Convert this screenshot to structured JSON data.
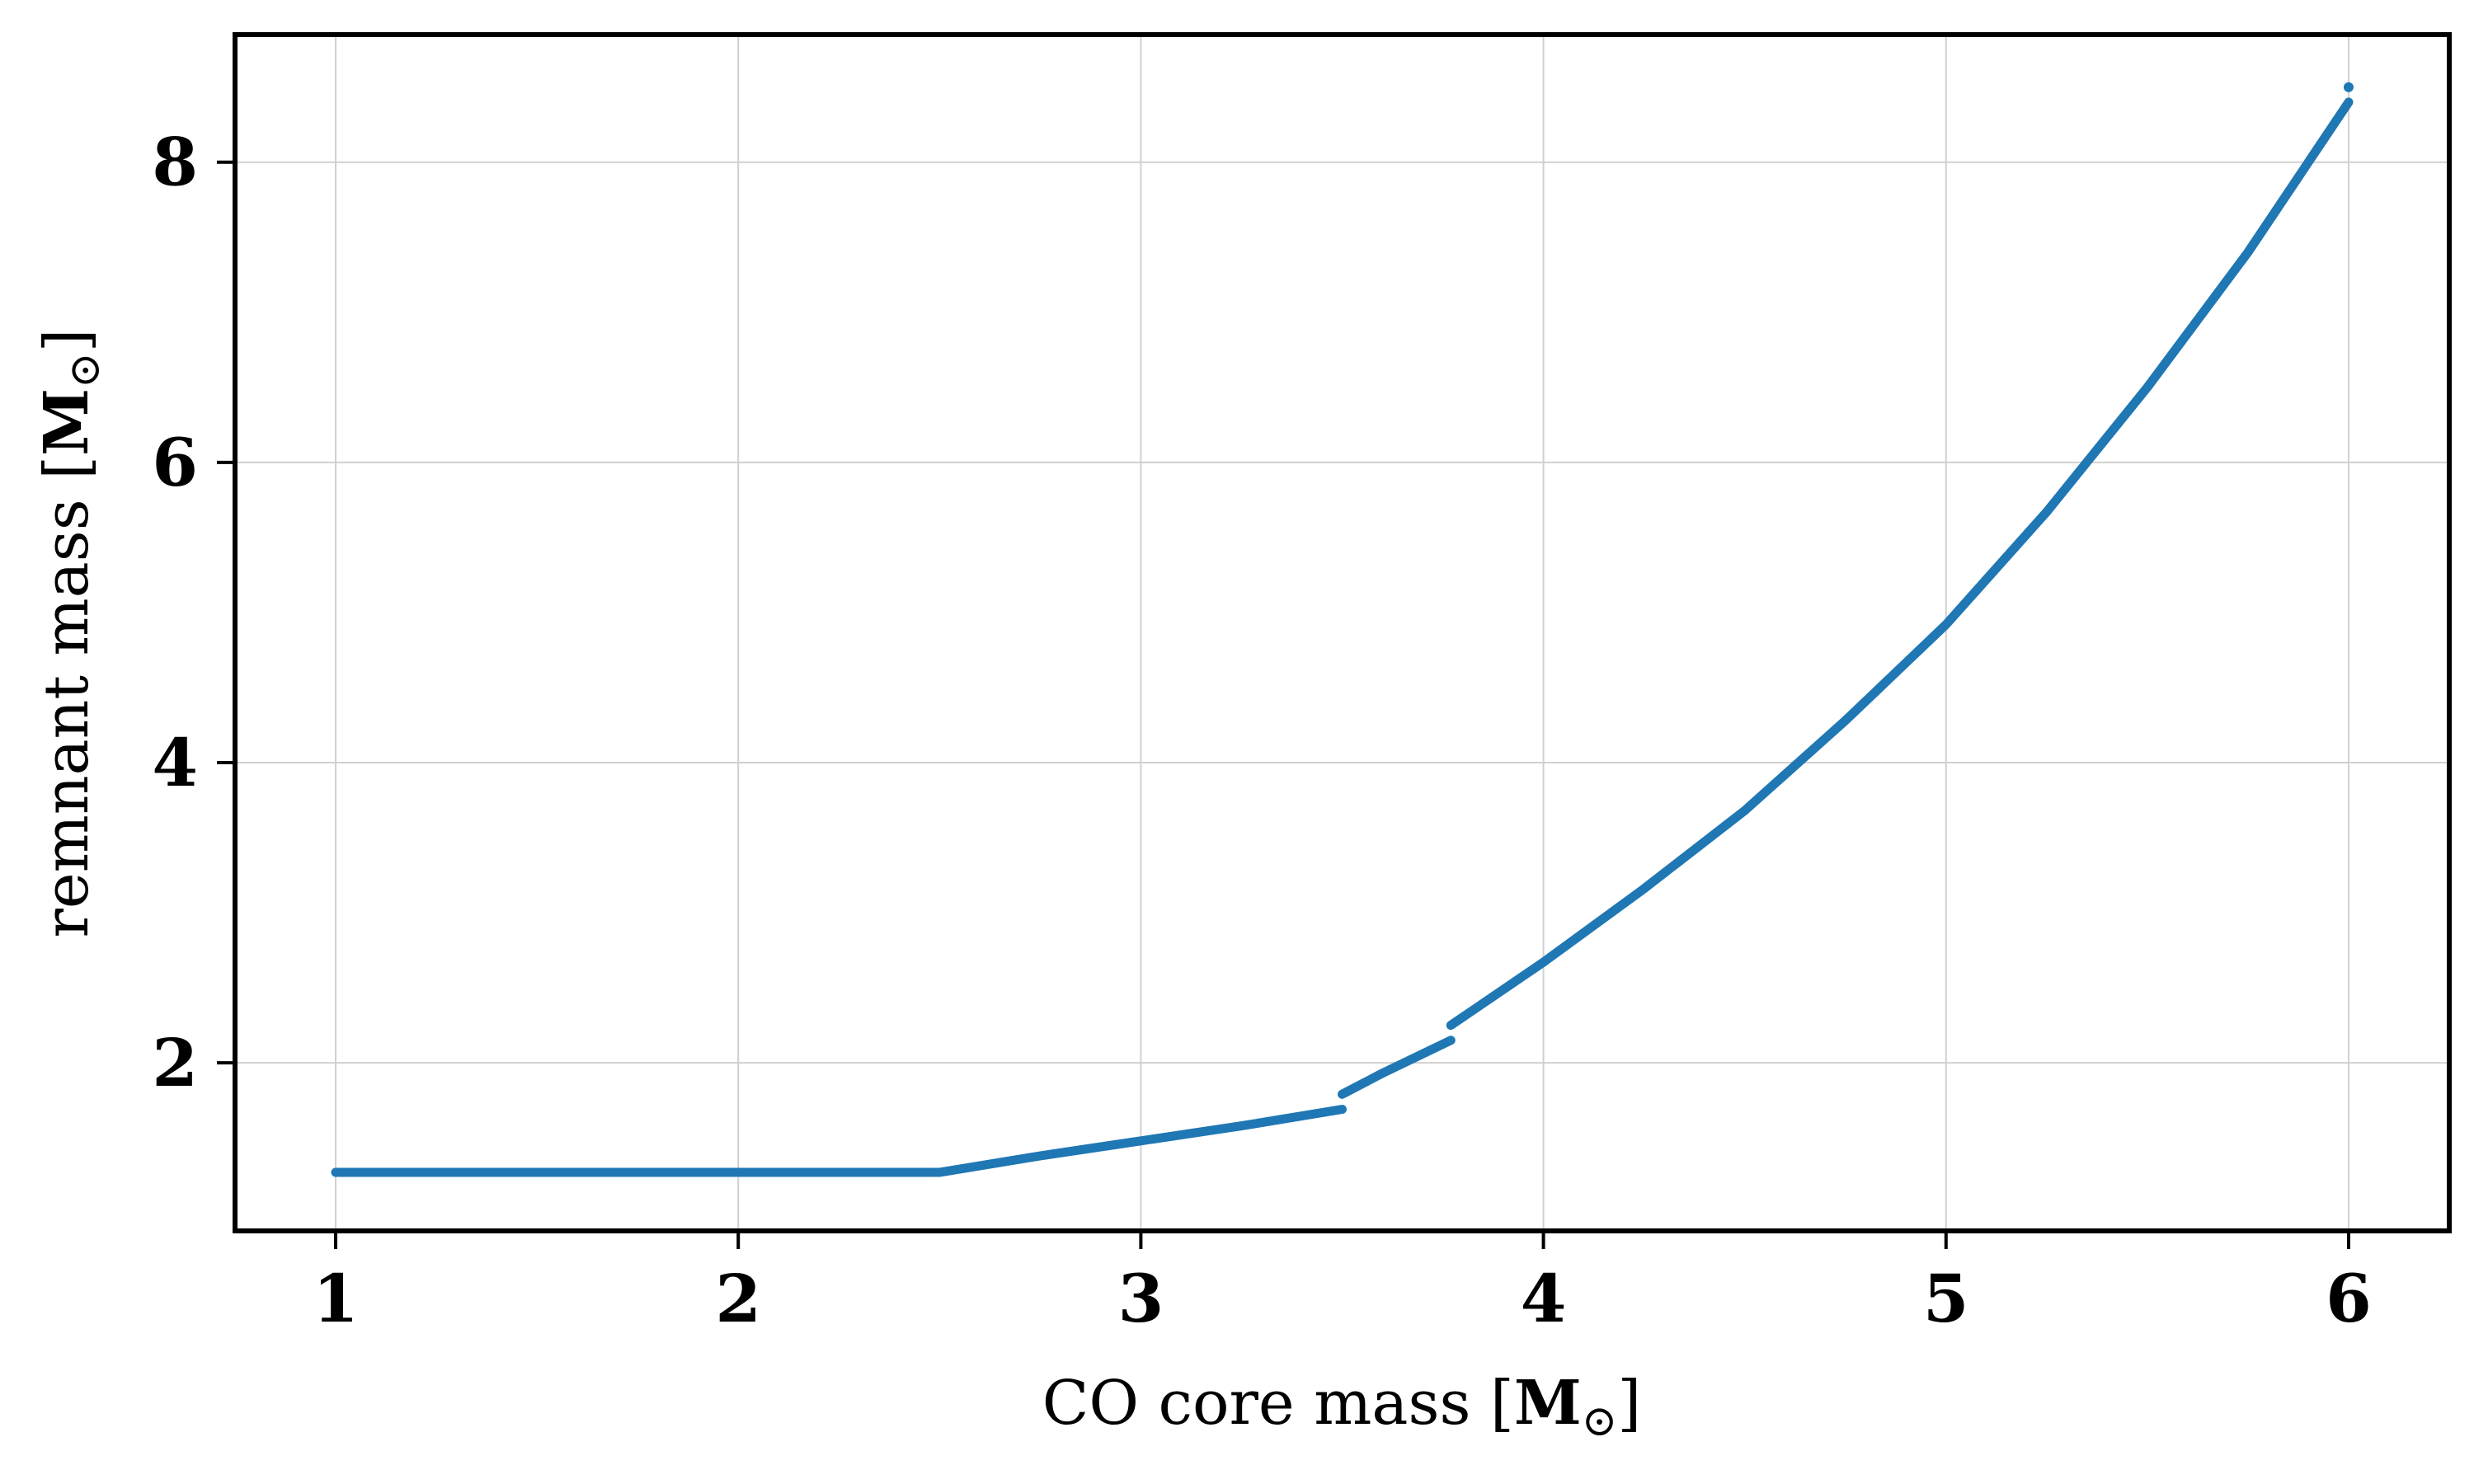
{
  "chart_data": {
    "type": "line",
    "title": "",
    "xlabel": "CO core mass [M⊙]",
    "ylabel": "remnant mass [M⊙]",
    "xlabel_parts": {
      "text": "CO core mass [",
      "unit": "M",
      "sub": "⊙",
      "close": "]"
    },
    "ylabel_parts": {
      "text": "remnant mass [",
      "unit": "M",
      "sub": "⊙",
      "close": "]"
    },
    "xlim": [
      0.75,
      6.25
    ],
    "ylim": [
      0.88,
      8.85
    ],
    "x_ticks": [
      1,
      2,
      3,
      4,
      5,
      6
    ],
    "x_tick_labels": [
      "1",
      "2",
      "3",
      "4",
      "5",
      "6"
    ],
    "y_ticks": [
      2,
      4,
      6,
      8
    ],
    "y_tick_labels": [
      "2",
      "4",
      "6",
      "8"
    ],
    "grid": true,
    "legend": "none",
    "series_color": "#1f77b4",
    "segments": [
      {
        "x": [
          1.0,
          2.5
        ],
        "y": [
          1.27,
          1.27
        ]
      },
      {
        "x": [
          2.5,
          2.75,
          3.0,
          3.25,
          3.5
        ],
        "y": [
          1.27,
          1.38,
          1.48,
          1.58,
          1.69
        ]
      },
      {
        "x": [
          3.5,
          3.6,
          3.77
        ],
        "y": [
          1.79,
          1.93,
          2.15
        ]
      },
      {
        "x": [
          3.77,
          4.0,
          4.25,
          4.5,
          4.75,
          5.0,
          5.25,
          5.5,
          5.75,
          6.0
        ],
        "y": [
          2.25,
          2.67,
          3.16,
          3.68,
          4.28,
          4.92,
          5.67,
          6.5,
          7.4,
          8.4
        ]
      }
    ],
    "end_point": {
      "x": 6.0,
      "y": 8.5
    }
  }
}
